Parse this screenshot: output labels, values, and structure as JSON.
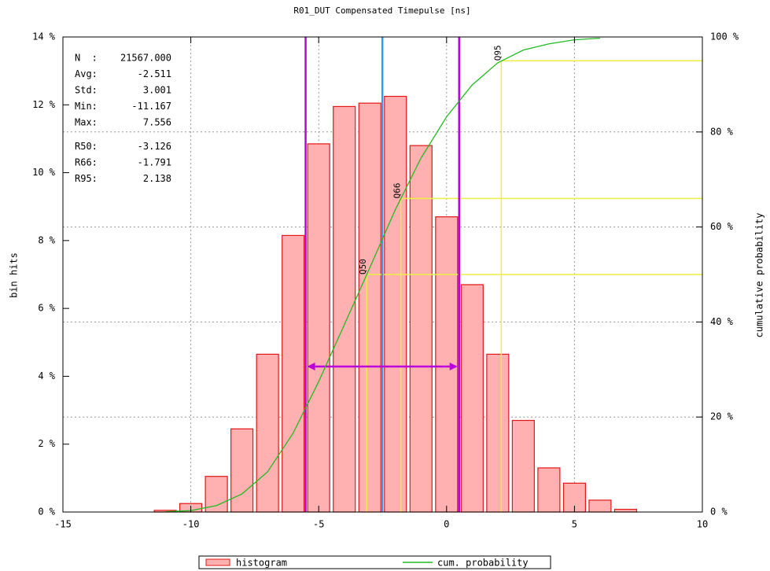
{
  "chart_data": {
    "type": "histogram",
    "title": "R01_DUT Compensated Timepulse [ns]",
    "ylabel": "bin hits",
    "y2label": "cumulative probability",
    "xlim": [
      -15,
      10
    ],
    "xticks": [
      -15,
      -10,
      -5,
      0,
      5,
      10
    ],
    "ylim": [
      0,
      14
    ],
    "yticks": [
      {
        "value": 0,
        "label": "0 %"
      },
      {
        "value": 2,
        "label": "2 %"
      },
      {
        "value": 4,
        "label": "4 %"
      },
      {
        "value": 6,
        "label": "6 %"
      },
      {
        "value": 8,
        "label": "8 %"
      },
      {
        "value": 10,
        "label": "10 %"
      },
      {
        "value": 12,
        "label": "12 %"
      },
      {
        "value": 14,
        "label": "14 %"
      }
    ],
    "y2lim": [
      0,
      100
    ],
    "y2ticks": [
      {
        "value": 0,
        "label": "0 %"
      },
      {
        "value": 20,
        "label": "20 %"
      },
      {
        "value": 40,
        "label": "40 %"
      },
      {
        "value": 60,
        "label": "60 %"
      },
      {
        "value": 80,
        "label": "80 %"
      },
      {
        "value": 100,
        "label": "100 %"
      }
    ],
    "grid": true,
    "legend": "bottom",
    "bins": [
      -11.5,
      -10.5,
      -9.5,
      -8.5,
      -7.5,
      -6.5,
      -5.5,
      -4.5,
      -3.5,
      -2.5,
      -1.5,
      -0.5,
      0.5,
      1.5,
      2.5,
      3.5,
      4.5,
      5.5,
      6.5,
      7.5
    ],
    "series": [
      {
        "name": "histogram",
        "color": "#ffb0b0",
        "edge_color": "#e01818",
        "values": [
          0.05,
          0.25,
          1.05,
          2.45,
          4.65,
          8.15,
          10.85,
          11.95,
          12.05,
          12.25,
          10.8,
          8.7,
          6.7,
          4.65,
          2.7,
          1.3,
          0.85,
          0.35,
          0.08
        ]
      },
      {
        "name": "cum. probability",
        "color": "#22bb22",
        "axis": "y2",
        "x": [
          -11,
          -10,
          -9,
          -8,
          -7,
          -6,
          -5,
          -4,
          -3,
          -2,
          -1,
          0,
          1,
          2,
          3,
          4,
          5,
          6
        ],
        "values": [
          0.05,
          0.3,
          1.35,
          3.8,
          8.45,
          16.6,
          27.45,
          39.4,
          51.45,
          63.7,
          74.5,
          83.2,
          89.9,
          94.55,
          97.25,
          98.55,
          99.4,
          99.75
        ]
      }
    ],
    "stats": [
      {
        "name": "N  :",
        "value": 21567,
        "value_label": "21567.000"
      },
      {
        "name": "Avg:",
        "value": -2.511
      },
      {
        "name": "Std:",
        "value": 3.001
      },
      {
        "name": "Min:",
        "value": -11.167
      },
      {
        "name": "Max:",
        "value": 7.556
      },
      {
        "name": "R50:",
        "value": -3.126
      },
      {
        "name": "R66:",
        "value": -1.791
      },
      {
        "name": "R95:",
        "value": 2.138
      }
    ],
    "quantiles": [
      {
        "label": "Q50",
        "p": 50
      },
      {
        "label": "Q66",
        "p": 66
      },
      {
        "label": "Q95",
        "p": 95
      }
    ]
  }
}
